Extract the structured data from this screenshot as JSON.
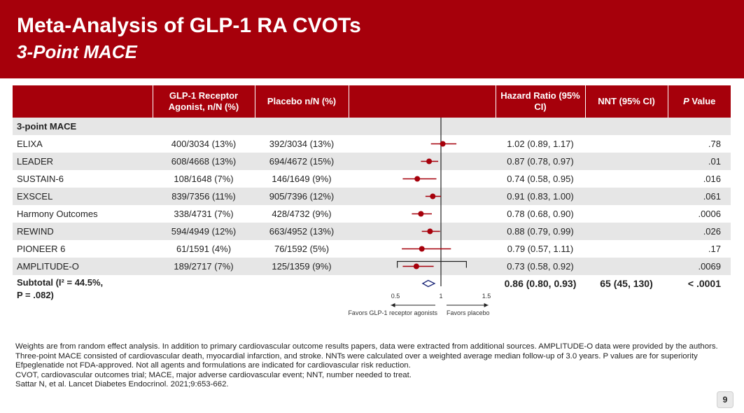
{
  "header": {
    "title": "Meta-Analysis of GLP-1 RA CVOTs",
    "subtitle": "3-Point MACE"
  },
  "table": {
    "columns": {
      "study": "",
      "glp1": "GLP-1 Receptor Agonist, n/N (%)",
      "placebo": "Placebo n/N (%)",
      "hr": "Hazard Ratio (95% CI)",
      "nnt": "NNT (95% CI)",
      "p_italic": "P",
      "p_rest": " Value"
    },
    "group_label": "3-point MACE",
    "rows": [
      {
        "study": "ELIXA",
        "glp1": "400/3034 (13%)",
        "placebo": "392/3034 (13%)",
        "hr_text": "1.02 (0.89, 1.17)",
        "p": ".78"
      },
      {
        "study": "LEADER",
        "glp1": "608/4668 (13%)",
        "placebo": "694/4672 (15%)",
        "hr_text": "0.87 (0.78, 0.97)",
        "p": ".01"
      },
      {
        "study": "SUSTAIN-6",
        "glp1": "108/1648 (7%)",
        "placebo": "146/1649 (9%)",
        "hr_text": "0.74 (0.58, 0.95)",
        "p": ".016"
      },
      {
        "study": "EXSCEL",
        "glp1": "839/7356 (11%)",
        "placebo": "905/7396 (12%)",
        "hr_text": "0.91 (0.83, 1.00)",
        "p": ".061"
      },
      {
        "study": "Harmony Outcomes",
        "glp1": "338/4731 (7%)",
        "placebo": "428/4732 (9%)",
        "hr_text": "0.78 (0.68, 0.90)",
        "p": ".0006"
      },
      {
        "study": "REWIND",
        "glp1": "594/4949 (12%)",
        "placebo": "663/4952 (13%)",
        "hr_text": "0.88 (0.79, 0.99)",
        "p": ".026"
      },
      {
        "study": "PIONEER 6",
        "glp1": "61/1591 (4%)",
        "placebo": "76/1592 (5%)",
        "hr_text": "0.79 (0.57, 1.11)",
        "p": ".17"
      },
      {
        "study": "AMPLITUDE-O",
        "glp1": "189/2717 (7%)",
        "placebo": "125/1359 (9%)",
        "hr_text": "0.73 (0.58, 0.92)",
        "p": ".0069"
      }
    ],
    "subtotal": {
      "label_line1": "Subtotal (I² = 44.5%,",
      "label_line2": "P = .082)",
      "hr_text": "0.86 (0.80, 0.93)",
      "nnt": "65 (45, 130)",
      "p": "< .0001"
    }
  },
  "chart_data": {
    "type": "forest",
    "reference_line": 1,
    "ticks": [
      0.5,
      1,
      1.5
    ],
    "tick_labels": [
      "0.5",
      "1",
      "1.5"
    ],
    "left_label": "Favors GLP-1 receptor agonists",
    "right_label": "Favors placebo",
    "studies": [
      {
        "name": "ELIXA",
        "hr": 1.02,
        "lo": 0.89,
        "hi": 1.17
      },
      {
        "name": "LEADER",
        "hr": 0.87,
        "lo": 0.78,
        "hi": 0.97
      },
      {
        "name": "SUSTAIN-6",
        "hr": 0.74,
        "lo": 0.58,
        "hi": 0.95
      },
      {
        "name": "EXSCEL",
        "hr": 0.91,
        "lo": 0.83,
        "hi": 1.0
      },
      {
        "name": "Harmony Outcomes",
        "hr": 0.78,
        "lo": 0.68,
        "hi": 0.9
      },
      {
        "name": "REWIND",
        "hr": 0.88,
        "lo": 0.79,
        "hi": 0.99
      },
      {
        "name": "PIONEER 6",
        "hr": 0.79,
        "lo": 0.57,
        "hi": 1.11
      },
      {
        "name": "AMPLITUDE-O",
        "hr": 0.73,
        "lo": 0.58,
        "hi": 0.92
      }
    ],
    "pooled": {
      "hr": 0.86,
      "lo": 0.8,
      "hi": 0.93
    },
    "colors": {
      "marker": "#a6000b",
      "line": "#222222",
      "diamond": "#1f2a7a"
    }
  },
  "footnotes": [
    "Weights are from random effect analysis. In addition to primary cardiovascular outcome results papers, data were extracted from additional sources. AMPLITUDE-O data were provided by the authors. Three-point MACE consisted of cardiovascular death, myocardial infarction, and stroke. NNTs were calculated over a weighted average median follow-up of 3.0 years. P values are for superiority",
    "Efpeglenatide not FDA-approved. Not all agents and formulations are indicated for cardiovascular risk reduction.",
    "CVOT, cardiovascular outcomes trial; MACE, major adverse cardiovascular event; NNT, number needed to treat.",
    "Sattar N, et al. Lancet Diabetes Endocrinol. 2021;9:653-662."
  ],
  "page_number": "9",
  "theme": {
    "header_bg": "#a6000b",
    "row_shade": "#e6e6e6"
  }
}
